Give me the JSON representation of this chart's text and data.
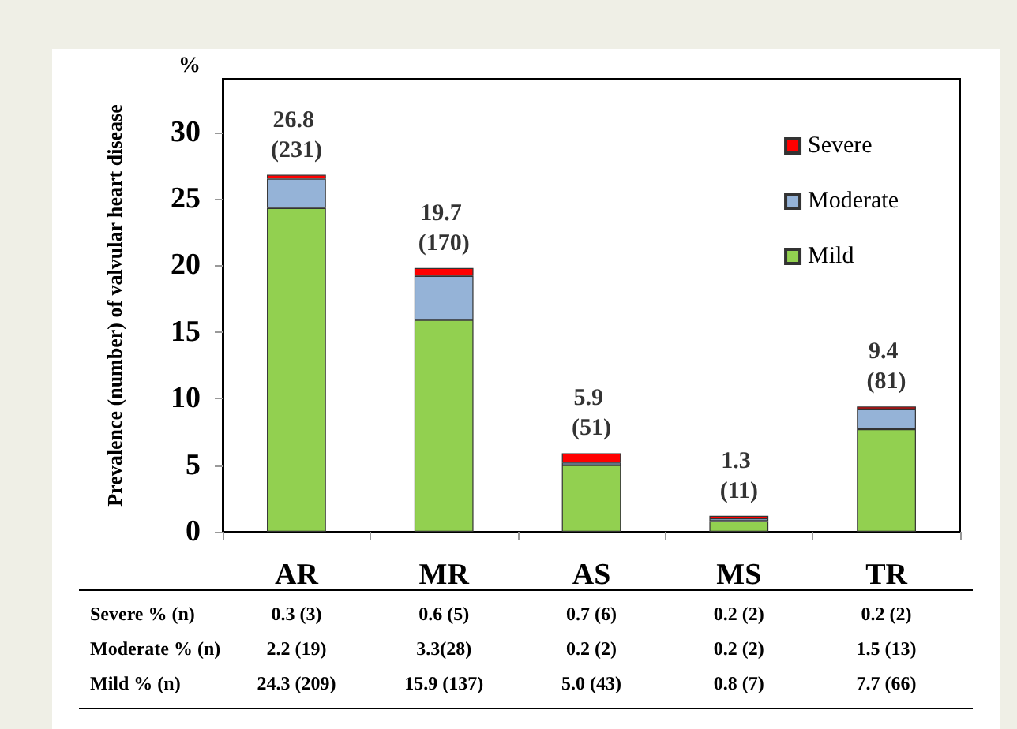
{
  "chart_data": {
    "type": "bar",
    "stacked": true,
    "ylabel": "Prevalence (number) of valvular heart disease",
    "categories": [
      "AR",
      "MR",
      "AS",
      "MS",
      "TR"
    ],
    "series": [
      {
        "name": "Mild",
        "color": "#92d050",
        "values": [
          24.3,
          15.9,
          5.0,
          0.8,
          7.7
        ],
        "value_labels": [
          "24.3 (209)",
          "15.9 (137)",
          "5.0 (43)",
          "0.8 (7)",
          "7.7 (66)"
        ]
      },
      {
        "name": "Moderate",
        "color": "#95b3d7",
        "values": [
          2.2,
          3.3,
          0.2,
          0.2,
          1.5
        ],
        "value_labels": [
          "2.2 (19)",
          "3.3(28)",
          "0.2 (2)",
          "0.2 (2)",
          "1.5 (13)"
        ]
      },
      {
        "name": "Severe",
        "color": "#ff0000",
        "values": [
          0.3,
          0.6,
          0.7,
          0.2,
          0.2
        ],
        "value_labels": [
          "0.3 (3)",
          "0.6 (5)",
          "0.7 (6)",
          "0.2 (2)",
          "0.2 (2)"
        ]
      }
    ],
    "totals": [
      "26.8 (231)",
      "19.7 (170)",
      "5.9 (51)",
      "1.3 (11)",
      "9.4 (81)"
    ],
    "annotations": [
      "%",
      "Mild % (n)",
      "Moderate % (n)",
      "Severe % (n)"
    ],
    "ylim": [
      0,
      34
    ],
    "yticks": [
      0,
      5,
      10,
      15,
      20,
      25,
      30
    ],
    "grid": false,
    "legend": "top right"
  }
}
